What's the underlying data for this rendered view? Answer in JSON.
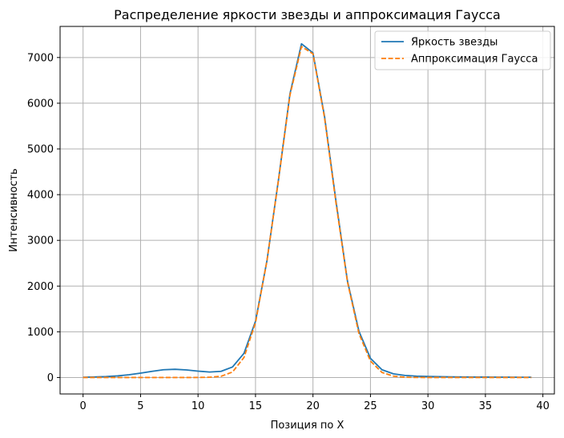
{
  "chart_data": {
    "type": "line",
    "title": "Распределение яркости звезды и аппроксимация Гаусса",
    "xlabel": "Позиция по X",
    "ylabel": "Интенсивность",
    "xlim": [
      -2,
      41
    ],
    "ylim": [
      -360,
      7680
    ],
    "xticks": [
      0,
      5,
      10,
      15,
      20,
      25,
      30,
      35,
      40
    ],
    "yticks": [
      0,
      1000,
      2000,
      3000,
      4000,
      5000,
      6000,
      7000
    ],
    "grid": true,
    "legend_position": "top-right",
    "x": [
      0,
      1,
      2,
      3,
      4,
      5,
      6,
      7,
      8,
      9,
      10,
      11,
      12,
      13,
      14,
      15,
      16,
      17,
      18,
      19,
      20,
      21,
      22,
      23,
      24,
      25,
      26,
      27,
      28,
      29,
      30,
      31,
      32,
      33,
      34,
      35,
      36,
      37,
      38,
      39
    ],
    "series": [
      {
        "name": "Яркость звезды",
        "color": "#1f77b4",
        "style": "solid",
        "values": [
          5,
          12,
          20,
          35,
          60,
          95,
          135,
          170,
          180,
          165,
          140,
          120,
          135,
          230,
          530,
          1230,
          2560,
          4330,
          6210,
          7300,
          7100,
          5720,
          3860,
          2110,
          1010,
          420,
          170,
          80,
          45,
          30,
          22,
          18,
          15,
          12,
          10,
          9,
          8,
          7,
          6,
          5
        ]
      },
      {
        "name": "Аппроксимация Гаусса",
        "color": "#ff7f0e",
        "style": "dashed",
        "values": [
          0,
          0,
          0,
          0,
          0,
          0,
          0,
          0,
          0,
          0,
          1,
          6,
          27,
          120,
          440,
          1200,
          2560,
          4320,
          6180,
          7240,
          7080,
          5690,
          3820,
          2090,
          960,
          360,
          110,
          30,
          6,
          1,
          0,
          0,
          0,
          0,
          0,
          0,
          0,
          0,
          0,
          0
        ]
      }
    ]
  }
}
